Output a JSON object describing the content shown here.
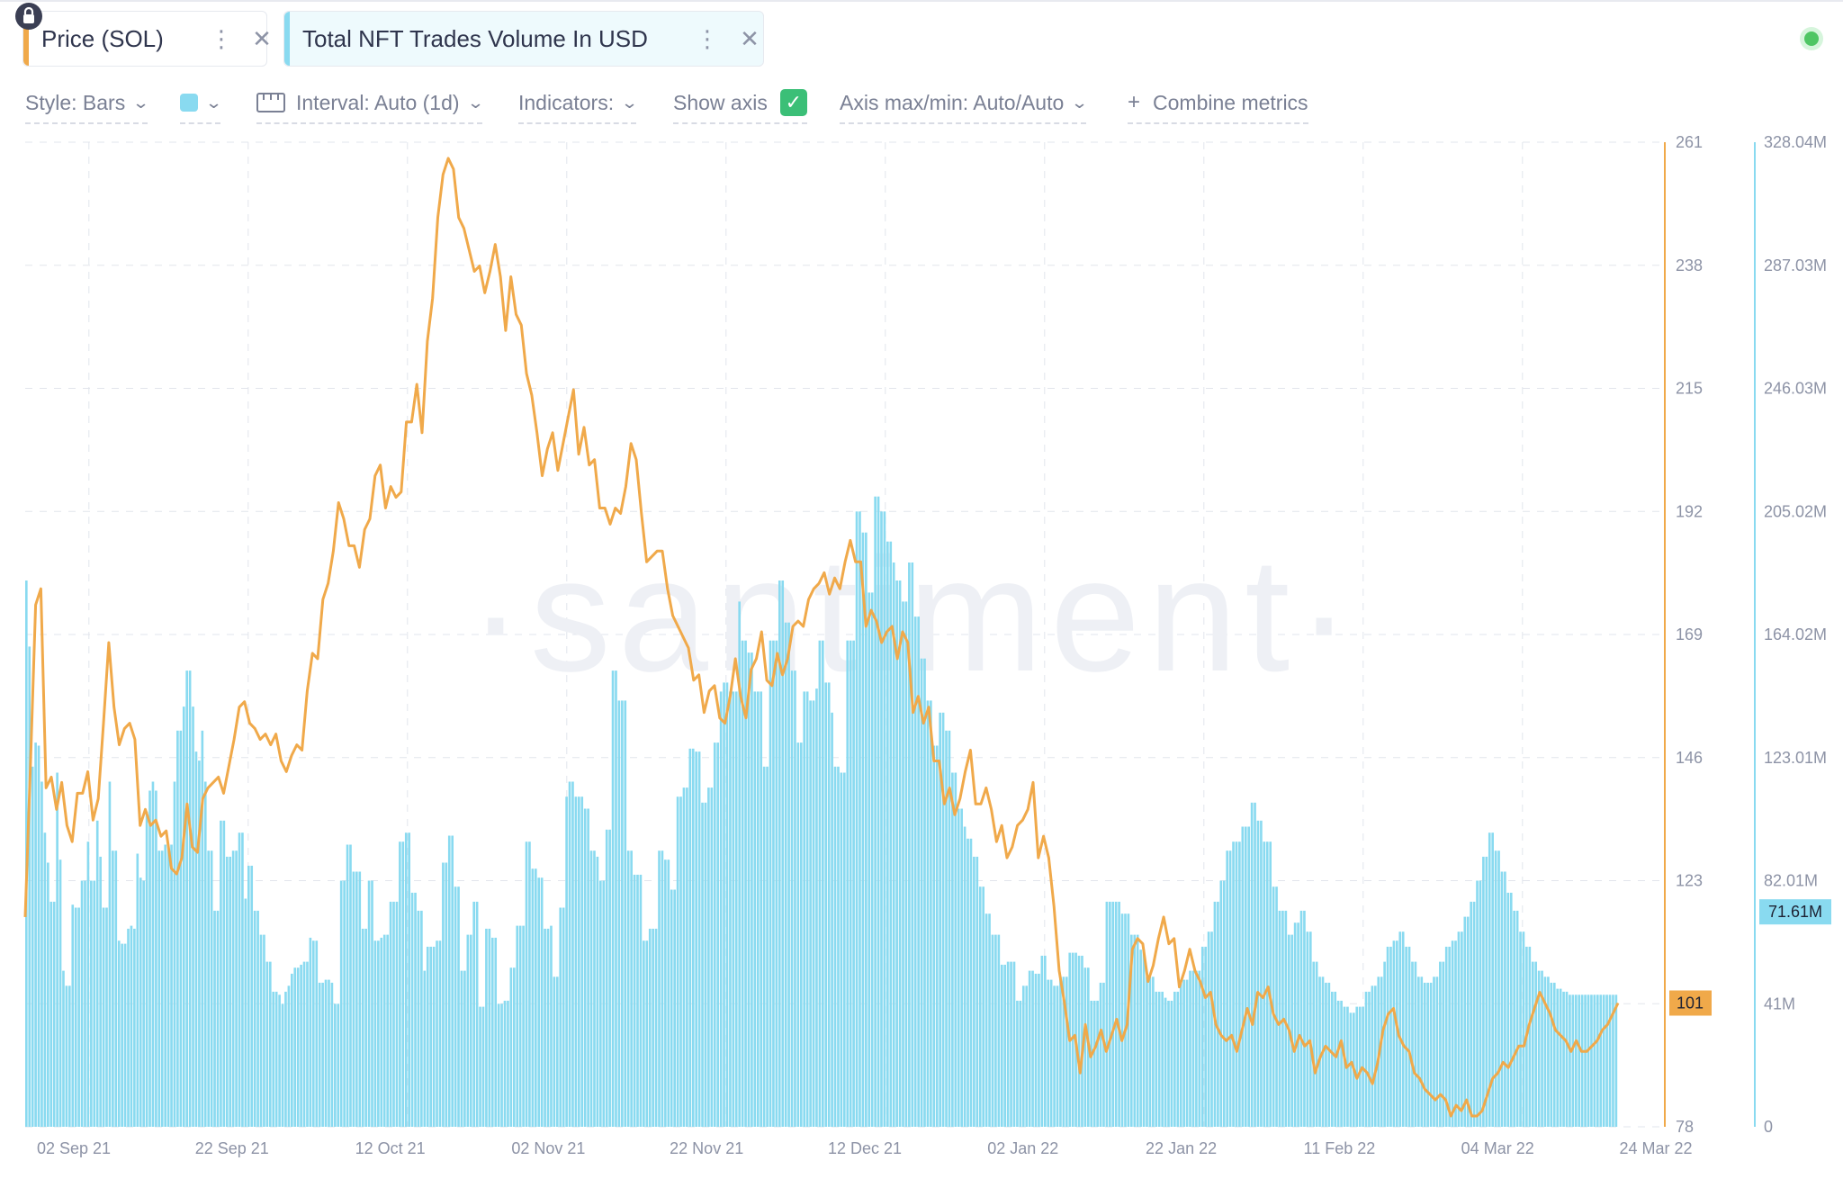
{
  "metric_tabs": [
    {
      "label": "Price (SOL)",
      "color": "#f0a94a"
    },
    {
      "label": "Total NFT Trades Volume In USD",
      "color": "#89daf0"
    }
  ],
  "toolbar": {
    "style_label": "Style: Bars",
    "interval_label": "Interval: Auto (1d)",
    "indicators_label": "Indicators:",
    "show_axis_label": "Show axis",
    "show_axis_checked": true,
    "axis_maxmin_label": "Axis max/min: Auto/Auto",
    "combine_label": "Combine metrics",
    "series_color": "#89daf0"
  },
  "watermark": "·santiment·",
  "chart_data": {
    "type": "bar",
    "x_labels": [
      "02 Sep 21",
      "22 Sep 21",
      "12 Oct 21",
      "02 Nov 21",
      "22 Nov 21",
      "12 Dec 21",
      "02 Jan 22",
      "22 Jan 22",
      "11 Feb 22",
      "04 Mar 22",
      "24 Mar 22"
    ],
    "price_axis": {
      "ticks": [
        "261",
        "238",
        "215",
        "192",
        "169",
        "146",
        "123",
        "101",
        "78"
      ],
      "min": 78,
      "max": 261,
      "current": "101",
      "color": "#f0a94a"
    },
    "volume_axis": {
      "ticks": [
        "328.04M",
        "287.03M",
        "246.03M",
        "205.02M",
        "164.02M",
        "123.01M",
        "82.01M",
        "41M",
        "0"
      ],
      "min": 0,
      "max": 328.04,
      "current": "71.61M",
      "color": "#89daf0"
    },
    "series": [
      {
        "name": "Total NFT Trades Volume In USD",
        "unit": "M",
        "style": "bars",
        "values": [
          182,
          160,
          120,
          128,
          127,
          115,
          98,
          88,
          75,
          75,
          118,
          89,
          52,
          47,
          47,
          74,
          73,
          73,
          82,
          82,
          95,
          82,
          82,
          102,
          90,
          73,
          73,
          115,
          92,
          92,
          62,
          61,
          61,
          66,
          67,
          66,
          91,
          83,
          82,
          105,
          112,
          115,
          112,
          92,
          92,
          94,
          94,
          94,
          115,
          132,
          132,
          140,
          152,
          152,
          140,
          125,
          122,
          132,
          115,
          92,
          92,
          72,
          72,
          102,
          102,
          90,
          90,
          92,
          92,
          98,
          98,
          76,
          87,
          87,
          72,
          72,
          64,
          64,
          55,
          55,
          45,
          45,
          44,
          41,
          45,
          47,
          51,
          53,
          53,
          54,
          55,
          55,
          63,
          62,
          62,
          48,
          48,
          49,
          49,
          48,
          41,
          41,
          82,
          82,
          94,
          94,
          85,
          85,
          85,
          66,
          66,
          82,
          82,
          62,
          62,
          63,
          64,
          64,
          75,
          75,
          75,
          95,
          95,
          98,
          98,
          78,
          78,
          72,
          72,
          52,
          60,
          60,
          60,
          62,
          62,
          88,
          88,
          97,
          97,
          80,
          80,
          52,
          52,
          64,
          64,
          75,
          75,
          40,
          40,
          66,
          66,
          63,
          63,
          41,
          41,
          42,
          42,
          53,
          53,
          67,
          67,
          67,
          95,
          95,
          86,
          86,
          83,
          83,
          66,
          66,
          67,
          50,
          50,
          73,
          73,
          110,
          115,
          115,
          110,
          110,
          110,
          106,
          106,
          92,
          92,
          90,
          82,
          82,
          99,
          99,
          152,
          152,
          142,
          142,
          142,
          92,
          92,
          84,
          84,
          84,
          62,
          62,
          66,
          66,
          66,
          92,
          92,
          89,
          89,
          79,
          79,
          110,
          110,
          113,
          113,
          126,
          126,
          125,
          125,
          108,
          108,
          113,
          113,
          128,
          128,
          145,
          148,
          148,
          145,
          145,
          145,
          175,
          162,
          162,
          158,
          158,
          145,
          145,
          145,
          120,
          120,
          162,
          162,
          162,
          182,
          182,
          168,
          168,
          152,
          152,
          128,
          128,
          145,
          145,
          142,
          142,
          146,
          162,
          162,
          148,
          148,
          138,
          120,
          120,
          118,
          118,
          162,
          162,
          162,
          205,
          205,
          198,
          198,
          178,
          178,
          210,
          210,
          205,
          205,
          195,
          195,
          188,
          182,
          182,
          175,
          175,
          188,
          188,
          170,
          170,
          156,
          156,
          142,
          142,
          127,
          127,
          138,
          138,
          132,
          132,
          118,
          118,
          106,
          106,
          100,
          96,
          96,
          90,
          90,
          80,
          80,
          71,
          71,
          64,
          64,
          64,
          54,
          54,
          55,
          55,
          55,
          42,
          42,
          47,
          47,
          52,
          52,
          51,
          51,
          57,
          57,
          49,
          49,
          47,
          47,
          50,
          50,
          50,
          58,
          58,
          58,
          57,
          57,
          53,
          53,
          42,
          42,
          42,
          48,
          48,
          75,
          75,
          75,
          75,
          75,
          71,
          71,
          71,
          64,
          64,
          64,
          59,
          59,
          50,
          50,
          50,
          45,
          45,
          45,
          43,
          42,
          42,
          45,
          45,
          48,
          49,
          49,
          52,
          52,
          52,
          52,
          60,
          60,
          65,
          65,
          75,
          75,
          82,
          82,
          92,
          92,
          95,
          95,
          95,
          100,
          100,
          100,
          108,
          108,
          102,
          102,
          95,
          95,
          95,
          80,
          80,
          72,
          72,
          72,
          64,
          64,
          68,
          68,
          72,
          72,
          65,
          65,
          55,
          55,
          50,
          50,
          48,
          48,
          45,
          45,
          42,
          42,
          40,
          40,
          38,
          38,
          40,
          40,
          40,
          45,
          45,
          47,
          47,
          50,
          50,
          55,
          60,
          60,
          62,
          62,
          65,
          65,
          60,
          60,
          55,
          55,
          50,
          50,
          48,
          48,
          48,
          50,
          50,
          55,
          55,
          60,
          60,
          62,
          62,
          65,
          65,
          70,
          70,
          75,
          75,
          82,
          82,
          90,
          90,
          98,
          98,
          92,
          92,
          85,
          85,
          78,
          78,
          72,
          72,
          65,
          65,
          60,
          60,
          55,
          55,
          52,
          52,
          50,
          50,
          48,
          48,
          46,
          46,
          45,
          45,
          44,
          44,
          44,
          44,
          44,
          44,
          44,
          44,
          44,
          44,
          44,
          44,
          44,
          44,
          44,
          44
        ]
      },
      {
        "name": "Price (SOL)",
        "style": "line",
        "values": [
          117,
          145,
          175,
          178,
          141,
          143,
          137,
          142,
          134,
          131,
          140,
          140,
          144,
          135,
          139,
          153,
          168,
          156,
          149,
          152,
          153,
          150,
          134,
          137,
          134,
          135,
          132,
          133,
          126,
          125,
          128,
          138,
          130,
          129,
          139,
          141,
          142,
          143,
          140,
          145,
          150,
          156,
          157,
          153,
          152,
          150,
          151,
          149,
          151,
          146,
          144,
          147,
          149,
          148,
          159,
          166,
          165,
          176,
          179,
          185,
          194,
          191,
          186,
          186,
          182,
          189,
          191,
          199,
          201,
          193,
          197,
          195,
          196,
          209,
          209,
          216,
          207,
          224,
          232,
          247,
          255,
          258,
          256,
          247,
          245,
          241,
          237,
          238,
          233,
          237,
          242,
          236,
          226,
          236,
          229,
          227,
          218,
          214,
          207,
          199,
          204,
          207,
          200,
          205,
          210,
          215,
          203,
          208,
          201,
          202,
          193,
          193,
          190,
          193,
          192,
          197,
          205,
          202,
          192,
          183,
          184,
          185,
          185,
          178,
          173,
          171,
          169,
          167,
          161,
          162,
          155,
          159,
          160,
          154,
          153,
          158,
          165,
          158,
          154,
          163,
          165,
          170,
          161,
          160,
          166,
          162,
          165,
          171,
          172,
          171,
          176,
          178,
          179,
          181,
          177,
          180,
          178,
          183,
          187,
          183,
          183,
          171,
          174,
          172,
          168,
          170,
          171,
          165,
          170,
          168,
          155,
          158,
          153,
          156,
          146,
          146,
          138,
          141,
          136,
          139,
          144,
          148,
          138,
          138,
          141,
          137,
          131,
          134,
          128,
          130,
          134,
          135,
          137,
          142,
          128,
          132,
          128,
          119,
          107,
          101,
          94,
          95,
          88,
          97,
          91,
          93,
          96,
          92,
          95,
          98,
          94,
          97,
          111,
          113,
          112,
          105,
          108,
          113,
          117,
          112,
          113,
          104,
          107,
          111,
          107,
          105,
          102,
          103,
          97,
          95,
          94,
          95,
          92,
          96,
          100,
          97,
          103,
          102,
          104,
          99,
          97,
          98,
          96,
          92,
          95,
          93,
          94,
          88,
          91,
          93,
          92,
          91,
          94,
          89,
          90,
          87,
          89,
          88,
          86,
          90,
          96,
          99,
          100,
          95,
          93,
          92,
          88,
          87,
          85,
          84,
          83,
          84,
          83,
          80,
          82,
          81,
          83,
          80,
          80,
          81,
          84,
          87,
          88,
          90,
          89,
          91,
          93,
          93,
          97,
          100,
          103,
          101,
          99,
          96,
          95,
          94,
          92,
          94,
          92,
          92,
          93,
          94,
          96,
          97,
          99,
          101
        ]
      }
    ],
    "xlabel": "",
    "ylabel": ""
  }
}
